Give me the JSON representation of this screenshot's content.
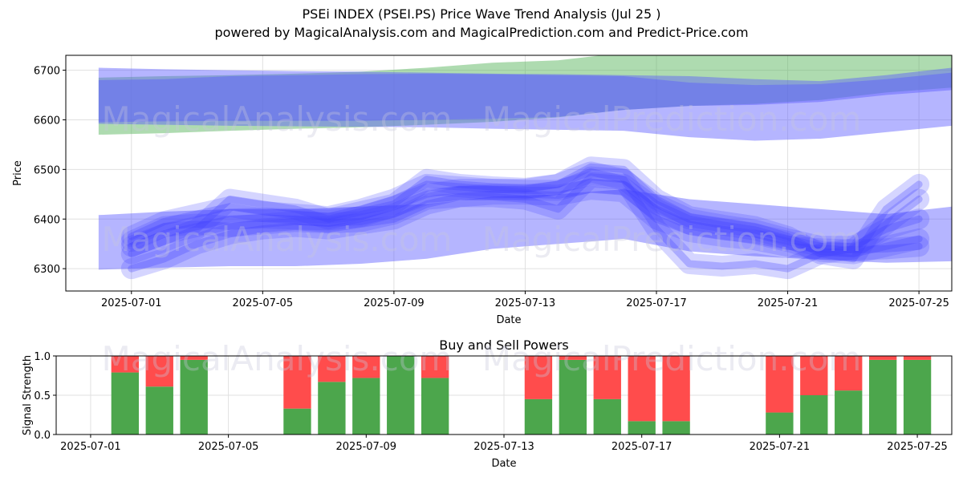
{
  "header": {
    "title": "PSEi INDEX (PSEI.PS) Price Wave Trend Analysis (Jul 25 )",
    "subtitle": "powered by MagicalAnalysis.com and MagicalPrediction.com and Predict-Price.com"
  },
  "watermarks": [
    "MagicalAnalysis.com",
    "MagicalPrediction.com"
  ],
  "colors": {
    "green_band": "#4caf50",
    "blue_band": "#6f6fff",
    "blue_wave": "#3c3cff",
    "buy": "#4ca64c",
    "sell": "#ff4c4c"
  },
  "chart_data": [
    {
      "type": "area",
      "xlabel": "Date",
      "ylabel": "Price",
      "x_tick_labels": [
        "2025-07-01",
        "2025-07-05",
        "2025-07-09",
        "2025-07-13",
        "2025-07-17",
        "2025-07-21",
        "2025-07-25"
      ],
      "y_tick_labels": [
        "6300",
        "6400",
        "6500",
        "6600",
        "6700"
      ],
      "x_range": [
        "2025-06-29",
        "2025-07-26"
      ],
      "ylim": [
        6255,
        6730
      ],
      "grid": true,
      "bands": [
        {
          "color": "green",
          "x": [
            "2025-06-30",
            "2025-07-02",
            "2025-07-04",
            "2025-07-06",
            "2025-07-08",
            "2025-07-10",
            "2025-07-12",
            "2025-07-14",
            "2025-07-16",
            "2025-07-18",
            "2025-07-20",
            "2025-07-22",
            "2025-07-24",
            "2025-07-26"
          ],
          "upper": [
            6685,
            6688,
            6690,
            6693,
            6697,
            6705,
            6715,
            6720,
            6735,
            6740,
            6745,
            6745,
            6745,
            6745
          ],
          "lower": [
            6570,
            6573,
            6578,
            6582,
            6585,
            6590,
            6596,
            6605,
            6620,
            6628,
            6632,
            6640,
            6655,
            6665
          ]
        },
        {
          "color": "blue",
          "x": [
            "2025-06-30",
            "2025-07-02",
            "2025-07-04",
            "2025-07-06",
            "2025-07-08",
            "2025-07-10",
            "2025-07-12",
            "2025-07-14",
            "2025-07-16",
            "2025-07-18",
            "2025-07-20",
            "2025-07-22",
            "2025-07-24",
            "2025-07-26"
          ],
          "upper": [
            6705,
            6702,
            6700,
            6698,
            6697,
            6695,
            6693,
            6692,
            6690,
            6688,
            6682,
            6678,
            6690,
            6705
          ],
          "lower": [
            6592,
            6590,
            6588,
            6587,
            6586,
            6585,
            6582,
            6580,
            6578,
            6565,
            6558,
            6562,
            6575,
            6588
          ]
        },
        {
          "color": "blue",
          "x": [
            "2025-06-30",
            "2025-07-02",
            "2025-07-04",
            "2025-07-06",
            "2025-07-08",
            "2025-07-10",
            "2025-07-12",
            "2025-07-14",
            "2025-07-16",
            "2025-07-18",
            "2025-07-20",
            "2025-07-22",
            "2025-07-24",
            "2025-07-26"
          ],
          "upper": [
            6680,
            6682,
            6688,
            6690,
            6692,
            6693,
            6692,
            6690,
            6688,
            6675,
            6670,
            6672,
            6682,
            6695
          ],
          "lower": [
            6595,
            6597,
            6598,
            6598,
            6598,
            6600,
            6602,
            6606,
            6620,
            6628,
            6630,
            6636,
            6650,
            6660
          ]
        },
        {
          "color": "blue",
          "x": [
            "2025-06-30",
            "2025-07-02",
            "2025-07-04",
            "2025-07-06",
            "2025-07-08",
            "2025-07-10",
            "2025-07-12",
            "2025-07-14",
            "2025-07-16",
            "2025-07-18",
            "2025-07-20",
            "2025-07-22",
            "2025-07-24",
            "2025-07-26"
          ],
          "upper": [
            6408,
            6415,
            6420,
            6420,
            6425,
            6430,
            6445,
            6450,
            6460,
            6440,
            6430,
            6420,
            6410,
            6425
          ],
          "lower": [
            6298,
            6302,
            6305,
            6305,
            6310,
            6320,
            6340,
            6350,
            6360,
            6335,
            6325,
            6318,
            6312,
            6315
          ]
        }
      ],
      "wave_lines": [
        {
          "x": [
            "2025-07-01",
            "2025-07-02",
            "2025-07-03",
            "2025-07-04",
            "2025-07-05",
            "2025-07-06",
            "2025-07-07",
            "2025-07-08",
            "2025-07-09",
            "2025-07-10",
            "2025-07-11",
            "2025-07-12",
            "2025-07-13",
            "2025-07-14",
            "2025-07-15",
            "2025-07-16",
            "2025-07-17",
            "2025-07-18",
            "2025-07-19",
            "2025-07-20",
            "2025-07-21",
            "2025-07-22",
            "2025-07-23",
            "2025-07-24",
            "2025-07-25"
          ],
          "y": [
            6345,
            6370,
            6385,
            6400,
            6402,
            6400,
            6398,
            6405,
            6425,
            6450,
            6460,
            6460,
            6458,
            6458,
            6475,
            6470,
            6420,
            6390,
            6380,
            6370,
            6355,
            6335,
            6330,
            6345,
            6360
          ]
        },
        {
          "x": [
            "2025-07-01",
            "2025-07-02",
            "2025-07-03",
            "2025-07-04",
            "2025-07-05",
            "2025-07-06",
            "2025-07-07",
            "2025-07-08",
            "2025-07-09",
            "2025-07-10",
            "2025-07-11",
            "2025-07-12",
            "2025-07-13",
            "2025-07-14",
            "2025-07-15",
            "2025-07-16",
            "2025-07-17",
            "2025-07-18",
            "2025-07-19",
            "2025-07-20",
            "2025-07-21",
            "2025-07-22",
            "2025-07-23",
            "2025-07-24",
            "2025-07-25"
          ],
          "y": [
            6330,
            6355,
            6380,
            6440,
            6430,
            6420,
            6400,
            6415,
            6430,
            6480,
            6470,
            6465,
            6462,
            6470,
            6505,
            6500,
            6440,
            6405,
            6395,
            6385,
            6365,
            6330,
            6320,
            6420,
            6470
          ]
        },
        {
          "x": [
            "2025-07-01",
            "2025-07-02",
            "2025-07-03",
            "2025-07-04",
            "2025-07-05",
            "2025-07-06",
            "2025-07-07",
            "2025-07-08",
            "2025-07-09",
            "2025-07-10",
            "2025-07-11",
            "2025-07-12",
            "2025-07-13",
            "2025-07-14",
            "2025-07-15",
            "2025-07-16",
            "2025-07-17",
            "2025-07-18",
            "2025-07-19",
            "2025-07-20",
            "2025-07-21",
            "2025-07-22",
            "2025-07-23",
            "2025-07-24",
            "2025-07-25"
          ],
          "y": [
            6355,
            6385,
            6390,
            6385,
            6390,
            6395,
            6392,
            6395,
            6410,
            6440,
            6445,
            6450,
            6450,
            6448,
            6460,
            6455,
            6400,
            6375,
            6365,
            6358,
            6345,
            6340,
            6338,
            6340,
            6345
          ]
        },
        {
          "x": [
            "2025-07-01",
            "2025-07-02",
            "2025-07-03",
            "2025-07-04",
            "2025-07-05",
            "2025-07-06",
            "2025-07-07",
            "2025-07-08",
            "2025-07-09",
            "2025-07-10",
            "2025-07-11",
            "2025-07-12",
            "2025-07-13",
            "2025-07-14",
            "2025-07-15",
            "2025-07-16",
            "2025-07-17",
            "2025-07-18",
            "2025-07-19",
            "2025-07-20",
            "2025-07-21",
            "2025-07-22",
            "2025-07-23",
            "2025-07-24",
            "2025-07-25"
          ],
          "y": [
            6300,
            6320,
            6350,
            6370,
            6380,
            6385,
            6380,
            6390,
            6400,
            6430,
            6445,
            6445,
            6440,
            6420,
            6485,
            6480,
            6380,
            6310,
            6305,
            6310,
            6300,
            6330,
            6340,
            6390,
            6440
          ]
        },
        {
          "x": [
            "2025-07-01",
            "2025-07-02",
            "2025-07-03",
            "2025-07-04",
            "2025-07-05",
            "2025-07-06",
            "2025-07-07",
            "2025-07-08",
            "2025-07-09",
            "2025-07-10",
            "2025-07-11",
            "2025-07-12",
            "2025-07-13",
            "2025-07-14",
            "2025-07-15",
            "2025-07-16",
            "2025-07-17",
            "2025-07-18",
            "2025-07-19",
            "2025-07-20",
            "2025-07-21",
            "2025-07-22",
            "2025-07-23",
            "2025-07-24",
            "2025-07-25"
          ],
          "y": [
            6365,
            6395,
            6410,
            6425,
            6415,
            6410,
            6405,
            6420,
            6440,
            6470,
            6465,
            6460,
            6460,
            6470,
            6495,
            6480,
            6430,
            6400,
            6388,
            6378,
            6360,
            6345,
            6345,
            6380,
            6400
          ]
        }
      ]
    },
    {
      "type": "bar",
      "title": "Buy and Sell Powers",
      "xlabel": "Date",
      "ylabel": "Signal Strength",
      "x_tick_labels": [
        "2025-07-01",
        "2025-07-05",
        "2025-07-09",
        "2025-07-13",
        "2025-07-17",
        "2025-07-21",
        "2025-07-25"
      ],
      "y_tick_labels": [
        "0.0",
        "0.5",
        "1.0"
      ],
      "x_range": [
        "2025-06-30",
        "2025-07-26"
      ],
      "ylim": [
        0,
        1
      ],
      "grid": true,
      "stacked": true,
      "categories": [
        "2025-07-02",
        "2025-07-03",
        "2025-07-04",
        "2025-07-07",
        "2025-07-08",
        "2025-07-09",
        "2025-07-10",
        "2025-07-11",
        "2025-07-14",
        "2025-07-15",
        "2025-07-16",
        "2025-07-17",
        "2025-07-18",
        "2025-07-21",
        "2025-07-22",
        "2025-07-23",
        "2025-07-24",
        "2025-07-25"
      ],
      "series": [
        {
          "color": "green",
          "values": [
            0.79,
            0.61,
            0.95,
            0.33,
            0.67,
            0.72,
            1.0,
            0.72,
            0.45,
            0.95,
            0.45,
            0.17,
            0.17,
            0.28,
            0.5,
            0.56,
            0.95,
            0.95
          ]
        },
        {
          "color": "red",
          "values": [
            0.21,
            0.39,
            0.05,
            0.67,
            0.33,
            0.28,
            0.0,
            0.28,
            0.55,
            0.05,
            0.55,
            0.83,
            0.83,
            0.72,
            0.5,
            0.44,
            0.05,
            0.05
          ]
        }
      ]
    }
  ]
}
